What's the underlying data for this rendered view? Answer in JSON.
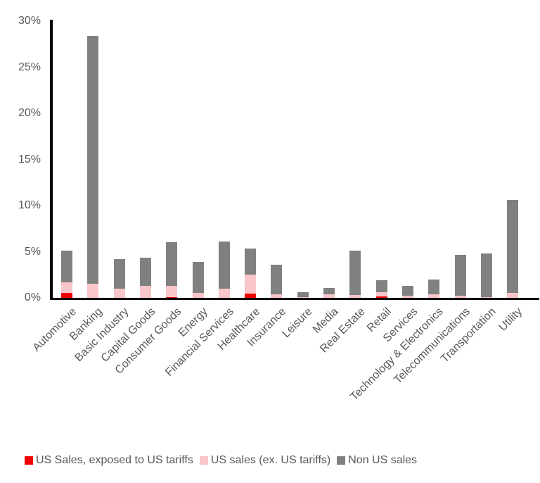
{
  "chart_data": {
    "type": "bar",
    "stacked": true,
    "title": "",
    "xlabel": "",
    "ylabel": "",
    "ylim": [
      0,
      30
    ],
    "yticks": [
      "0%",
      "5%",
      "10%",
      "15%",
      "20%",
      "25%",
      "30%"
    ],
    "grid": false,
    "legend_position": "bottom",
    "categories": [
      "Automotive",
      "Banking",
      "Basic Industry",
      "Capital Goods",
      "Consumer Goods",
      "Energy",
      "Financial Services",
      "Healthcare",
      "Insurance",
      "Leisure",
      "Media",
      "Real Estate",
      "Retail",
      "Services",
      "Technology & Electronics",
      "Telecommunications",
      "Transportation",
      "Utility"
    ],
    "series": [
      {
        "name": "US Sales, exposed to US tariffs",
        "color": "#ee0000",
        "values": [
          0.5,
          0.0,
          0.0,
          0.0,
          0.1,
          0.0,
          0.0,
          0.45,
          0.0,
          0.0,
          0.0,
          0.0,
          0.15,
          0.0,
          0.0,
          0.0,
          0.0,
          0.0
        ]
      },
      {
        "name": "US sales (ex. US tariffs)",
        "color": "#f9c6ca",
        "values": [
          1.2,
          1.5,
          1.0,
          1.3,
          1.2,
          0.55,
          1.0,
          2.05,
          0.35,
          0.05,
          0.4,
          0.3,
          0.5,
          0.25,
          0.35,
          0.2,
          0.1,
          0.5
        ]
      },
      {
        "name": "Non US sales",
        "color": "#808080",
        "values": [
          3.4,
          26.9,
          3.2,
          3.05,
          4.7,
          3.35,
          5.1,
          2.85,
          3.25,
          0.55,
          0.7,
          4.8,
          1.25,
          1.05,
          1.6,
          4.45,
          4.7,
          10.15
        ]
      }
    ]
  },
  "colors": {
    "axis": "#000000",
    "text": "#595959",
    "background": "#ffffff"
  }
}
